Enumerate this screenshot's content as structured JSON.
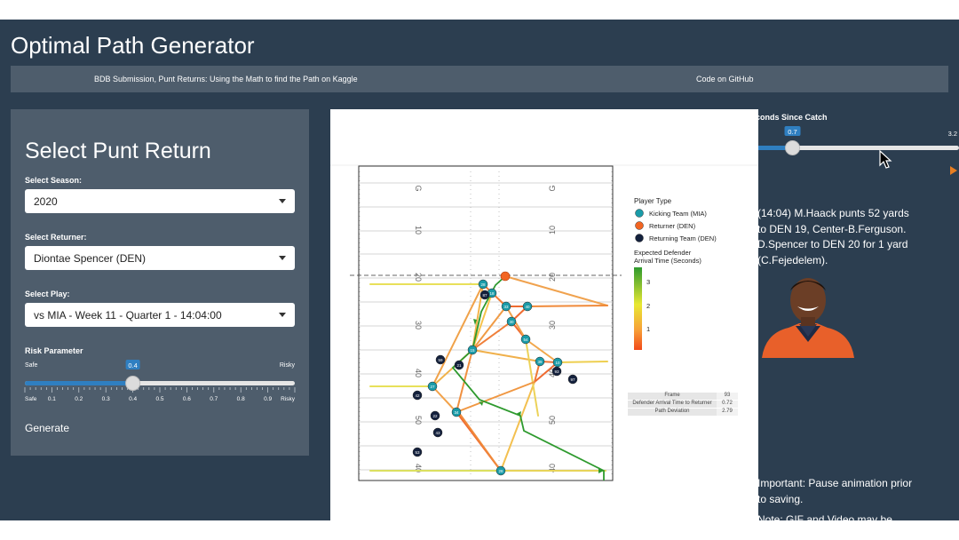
{
  "app": {
    "title": "Optimal Path Generator"
  },
  "nav": {
    "submission_link": "BDB Submission, Punt Returns: Using the Math to find the Path on Kaggle",
    "github_link": "Code on GitHub"
  },
  "sidebar": {
    "heading": "Select Punt Return",
    "season": {
      "label": "Select Season:",
      "value": "2020"
    },
    "returner": {
      "label": "Select Returner:",
      "value": "Diontae Spencer (DEN)"
    },
    "play": {
      "label": "Select Play:",
      "value": "vs MIA - Week 11 - Quarter 1 - 14:04:00"
    },
    "risk": {
      "label": "Risk Parameter",
      "value": 0.4,
      "value_text": "0.4",
      "min_text": "Safe",
      "max_text": "Risky",
      "ticks": [
        "Safe",
        "0.1",
        "0.2",
        "0.3",
        "0.4",
        "0.5",
        "0.6",
        "0.7",
        "0.8",
        "0.9",
        "Risky"
      ]
    },
    "generate_label": "Generate"
  },
  "time_slider": {
    "label": "Seconds Since Catch",
    "value": 0.7,
    "value_text": "0.7",
    "max_text": "3.2"
  },
  "plot": {
    "legend": {
      "title": "Player Type",
      "entries": [
        {
          "label": "Kicking Team (MIA)",
          "color": "#1a9ba8"
        },
        {
          "label": "Returner (DEN)",
          "color": "#f26522"
        },
        {
          "label": "Returning Team (DEN)",
          "color": "#14213d"
        }
      ],
      "gradient_title_1": "Expected Defender",
      "gradient_title_2": "Arrival Time (Seconds)",
      "gradient_ticks": [
        "3",
        "2",
        "1"
      ]
    },
    "yard_labels": [
      "G",
      "10",
      "20",
      "30",
      "40",
      "50",
      "40"
    ],
    "table": [
      {
        "key": "Frame",
        "value": "93"
      },
      {
        "key": "Defender Arrival Time to Returner",
        "value": "0.72"
      },
      {
        "key": "Path Deviation",
        "value": "2.79"
      }
    ],
    "kicking_numbers": [
      "28",
      "18",
      "33",
      "40",
      "30",
      "54",
      "15",
      "39",
      "10",
      "27",
      "34"
    ],
    "returning_numbers": [
      "87",
      "59",
      "21",
      "93",
      "97",
      "42",
      "22",
      "43",
      "53"
    ]
  },
  "play_description": {
    "line1": "(14:04) M.Haack punts 52 yards",
    "line2": "to DEN 19, Center-B.Ferguson.",
    "line3": "D.Spencer to DEN 20 for 1 yard",
    "line4": "(C.Fejedelem)."
  },
  "notes": {
    "important_line1": "Important: Pause animation prior",
    "important_line2": "to saving.",
    "partial_line": "Note: GIF and Video may be"
  },
  "colors": {
    "background": "#2c3e50",
    "panel": "#4e5d6c",
    "slider_blue": "#2f7fc1",
    "path_green": "#2e9a2e"
  }
}
